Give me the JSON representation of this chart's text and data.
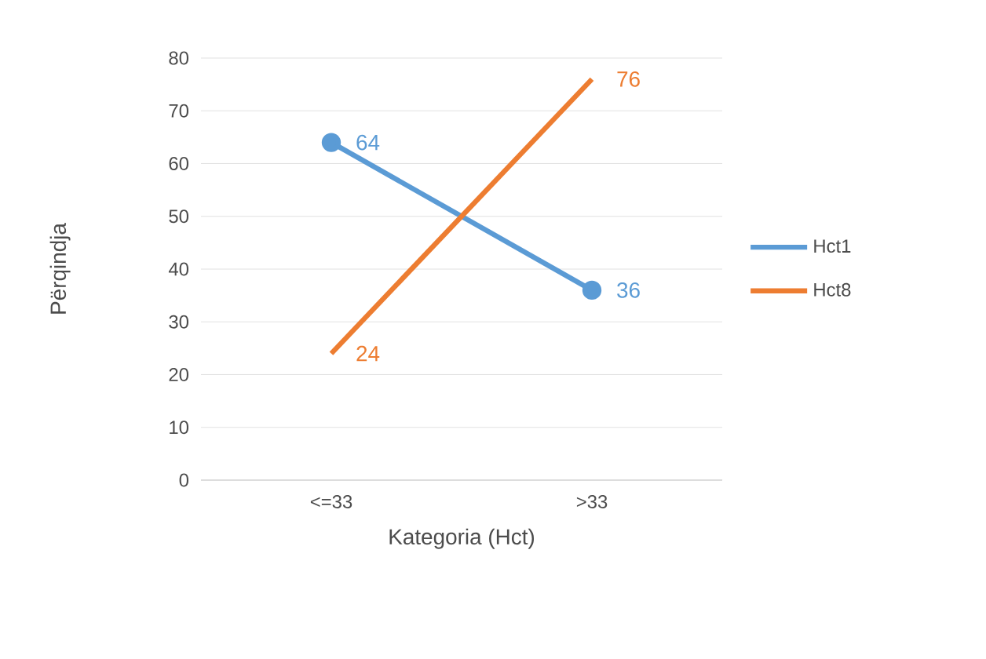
{
  "chart_data": {
    "type": "line",
    "xlabel": "Kategoria (Hct)",
    "ylabel": "Përqindja",
    "categories": [
      "<=33",
      ">33"
    ],
    "series": [
      {
        "name": "Hct1",
        "color": "#5b9bd5",
        "values": [
          64,
          36
        ],
        "marker": "circle"
      },
      {
        "name": "Hct8",
        "color": "#ed7d31",
        "values": [
          24,
          76
        ],
        "marker": "none"
      }
    ],
    "ylim": [
      0,
      80
    ],
    "yticks": [
      0,
      10,
      20,
      30,
      40,
      50,
      60,
      70,
      80
    ],
    "grid": "y",
    "legend": "right",
    "data_labels": true
  }
}
